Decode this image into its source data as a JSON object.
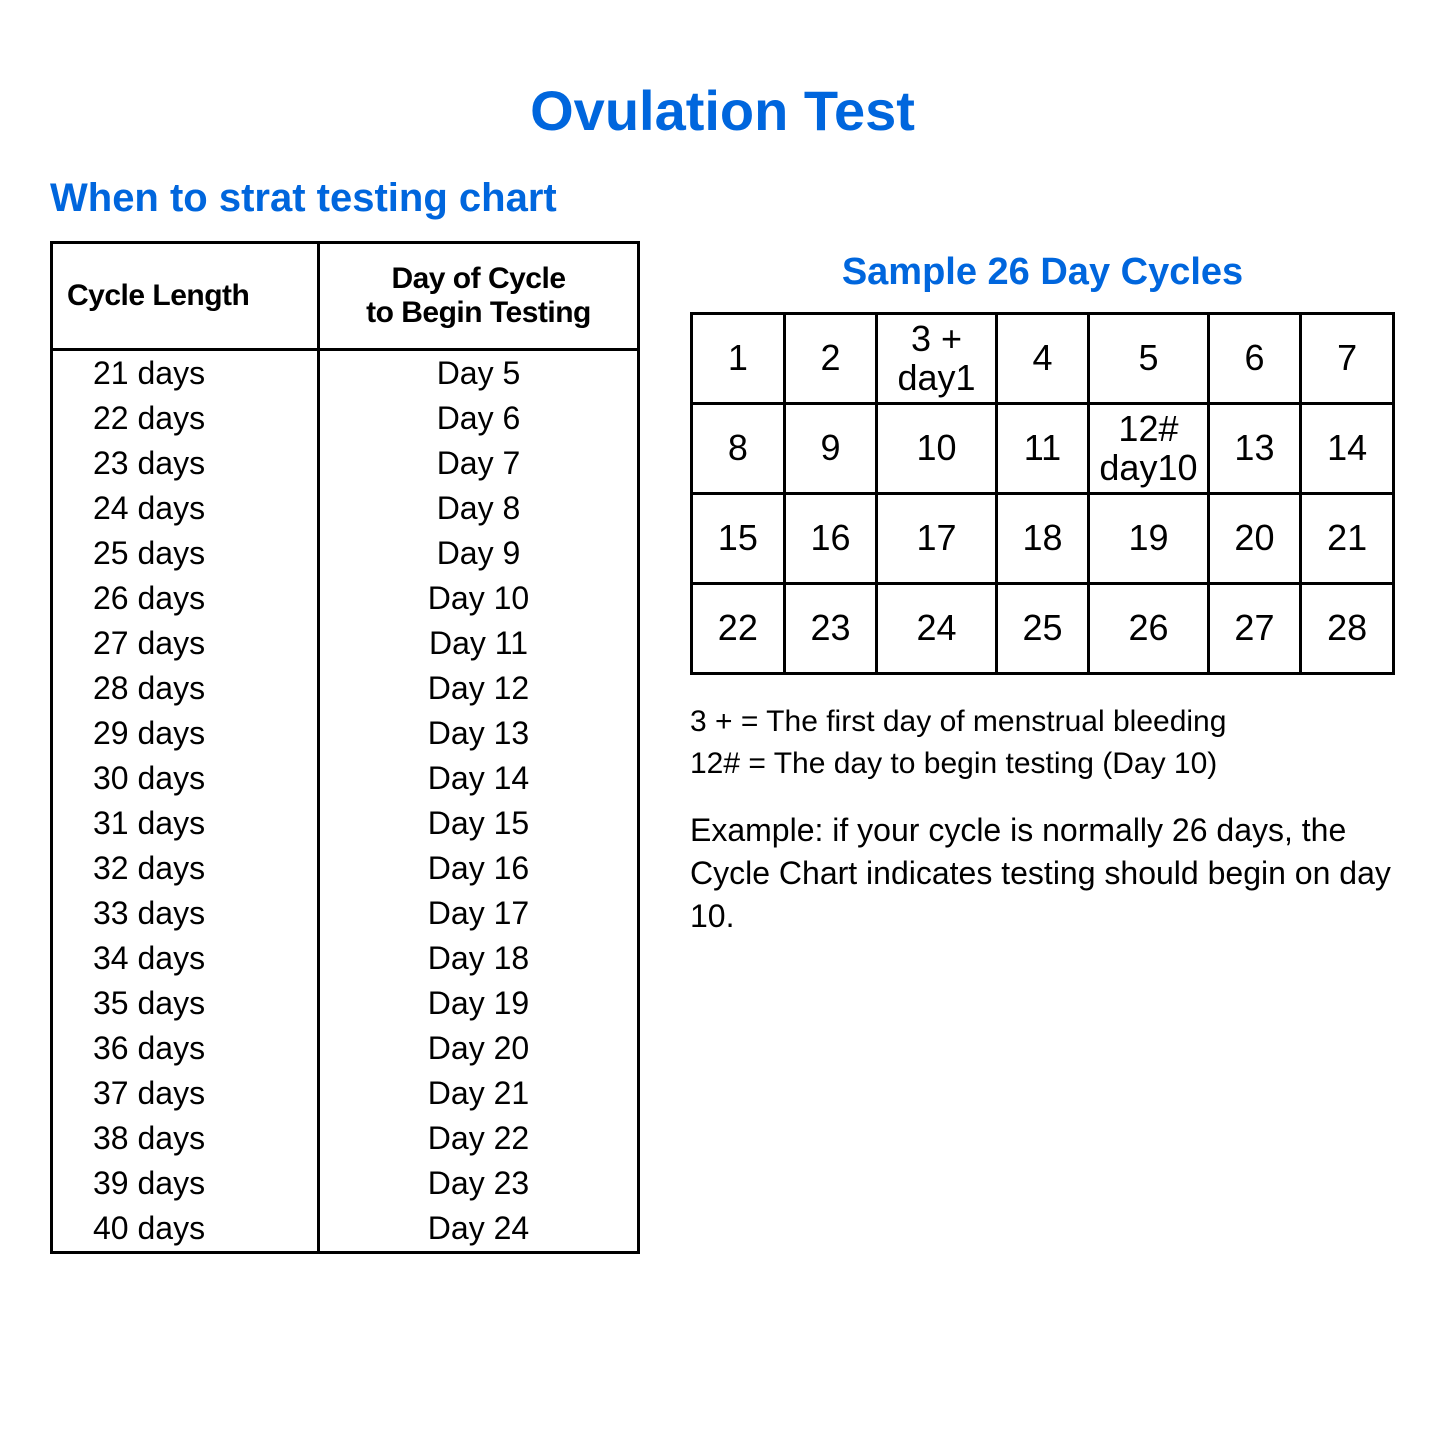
{
  "colors": {
    "accent": "#0066dd",
    "text": "#000000",
    "background": "#ffffff",
    "border": "#000000"
  },
  "title": "Ovulation Test",
  "subtitle": "When to strat testing chart",
  "cycle_table": {
    "header_col1": "Cycle Length",
    "header_col2_line1": "Day of Cycle",
    "header_col2_line2": "to Begin Testing",
    "rows": [
      {
        "length": "21 days",
        "day": "Day 5"
      },
      {
        "length": "22 days",
        "day": "Day 6"
      },
      {
        "length": "23 days",
        "day": "Day 7"
      },
      {
        "length": "24 days",
        "day": "Day 8"
      },
      {
        "length": "25 days",
        "day": "Day 9"
      },
      {
        "length": "26 days",
        "day": "Day 10"
      },
      {
        "length": "27 days",
        "day": "Day 11"
      },
      {
        "length": "28 days",
        "day": "Day 12"
      },
      {
        "length": "29 days",
        "day": "Day 13"
      },
      {
        "length": "30 days",
        "day": "Day 14"
      },
      {
        "length": "31 days",
        "day": "Day 15"
      },
      {
        "length": "32 days",
        "day": "Day 16"
      },
      {
        "length": "33 days",
        "day": "Day 17"
      },
      {
        "length": "34 days",
        "day": "Day 18"
      },
      {
        "length": "35 days",
        "day": "Day 19"
      },
      {
        "length": "36 days",
        "day": "Day 20"
      },
      {
        "length": "37 days",
        "day": "Day 21"
      },
      {
        "length": "38 days",
        "day": "Day 22"
      },
      {
        "length": "39 days",
        "day": "Day 23"
      },
      {
        "length": "40 days",
        "day": "Day 24"
      }
    ]
  },
  "sample": {
    "title": "Sample 26 Day Cycles",
    "grid": [
      [
        "1",
        "2",
        "3 +\nday1",
        "4",
        "5",
        "6",
        "7"
      ],
      [
        "8",
        "9",
        "10",
        "11",
        "12#\nday10",
        "13",
        "14"
      ],
      [
        "15",
        "16",
        "17",
        "18",
        "19",
        "20",
        "21"
      ],
      [
        "22",
        "23",
        "24",
        "25",
        "26",
        "27",
        "28"
      ]
    ],
    "legend1": "3 + = The first day of menstrual bleeding",
    "legend2": "12# = The day to begin testing (Day 10)",
    "example": "Example: if your cycle is normally 26 days, the Cycle Chart indicates testing should begin on day 10."
  }
}
